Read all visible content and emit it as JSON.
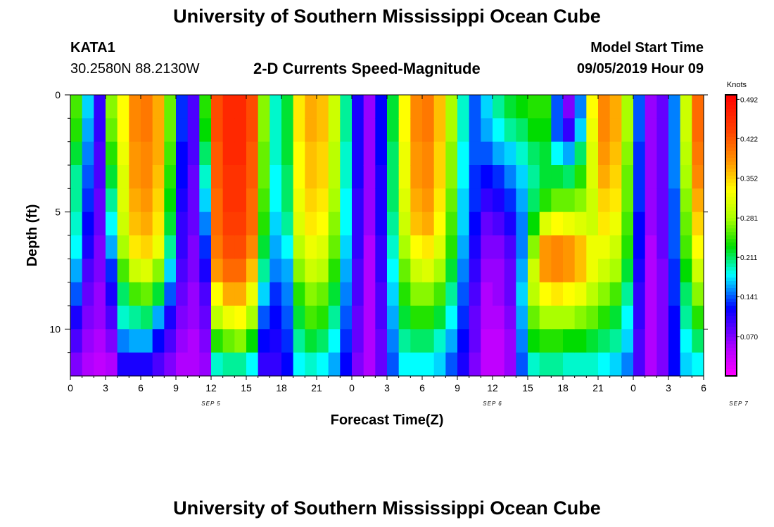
{
  "header": {
    "title": "University of Southern Mississippi Ocean Cube",
    "station_id": "KATA1",
    "station_coords": "30.2580N 88.2130W",
    "product": "2-D Currents Speed-Magnitude",
    "model_start_label": "Model Start Time",
    "model_start_value": "09/05/2019 Hour 09"
  },
  "footer": {
    "title": "University of Southern Mississippi Ocean Cube"
  },
  "chart_data": {
    "type": "heatmap",
    "title": "2-D Currents Speed-Magnitude",
    "xlabel": "Forecast Time(Z)",
    "ylabel": "Depth (ft)",
    "x_ticks": [
      "0",
      "3",
      "6",
      "9",
      "12",
      "15",
      "18",
      "21",
      "0",
      "3",
      "6",
      "9",
      "12",
      "15",
      "18",
      "21",
      "0",
      "3",
      "6"
    ],
    "date_labels": [
      {
        "label": "SEP 5",
        "hour": 12
      },
      {
        "label": "SEP 6",
        "hour": 36
      },
      {
        "label": "SEP 7",
        "hour": 57
      }
    ],
    "x_range_hours": [
      0,
      54
    ],
    "y_ticks": [
      "0",
      "5",
      "10"
    ],
    "y_range_ft": [
      0,
      12
    ],
    "colorbar": {
      "unit": "Knots",
      "ticks": [
        "0.492",
        "0.422",
        "0.352",
        "0.281",
        "0.211",
        "0.141",
        "0.070"
      ],
      "tick_values": [
        0.492,
        0.422,
        0.352,
        0.281,
        0.211,
        0.141,
        0.07
      ],
      "range": [
        0.0,
        0.5
      ]
    },
    "depth_rows": 12,
    "time_columns": 54,
    "column_profiles": [
      [
        0.25,
        0.24,
        0.22,
        0.2,
        0.2,
        0.19,
        0.18,
        0.16,
        0.14,
        0.11,
        0.09,
        0.07
      ],
      [
        0.17,
        0.16,
        0.15,
        0.14,
        0.13,
        0.12,
        0.11,
        0.09,
        0.08,
        0.07,
        0.06,
        0.05
      ],
      [
        0.1,
        0.1,
        0.09,
        0.09,
        0.08,
        0.08,
        0.07,
        0.07,
        0.06,
        0.06,
        0.05,
        0.04
      ],
      [
        0.27,
        0.26,
        0.24,
        0.22,
        0.2,
        0.18,
        0.16,
        0.13,
        0.11,
        0.09,
        0.07,
        0.05
      ],
      [
        0.33,
        0.33,
        0.32,
        0.31,
        0.31,
        0.3,
        0.28,
        0.25,
        0.21,
        0.19,
        0.15,
        0.11
      ],
      [
        0.39,
        0.39,
        0.38,
        0.38,
        0.37,
        0.36,
        0.34,
        0.3,
        0.25,
        0.2,
        0.16,
        0.11
      ],
      [
        0.4,
        0.4,
        0.39,
        0.39,
        0.38,
        0.37,
        0.35,
        0.31,
        0.26,
        0.21,
        0.16,
        0.11
      ],
      [
        0.37,
        0.37,
        0.37,
        0.36,
        0.35,
        0.34,
        0.32,
        0.27,
        0.22,
        0.16,
        0.12,
        0.09
      ],
      [
        0.26,
        0.26,
        0.25,
        0.24,
        0.23,
        0.22,
        0.2,
        0.17,
        0.14,
        0.11,
        0.09,
        0.07
      ],
      [
        0.13,
        0.13,
        0.12,
        0.12,
        0.11,
        0.1,
        0.1,
        0.09,
        0.08,
        0.07,
        0.06,
        0.05
      ],
      [
        0.09,
        0.09,
        0.09,
        0.08,
        0.08,
        0.08,
        0.07,
        0.07,
        0.06,
        0.06,
        0.05,
        0.05
      ],
      [
        0.24,
        0.23,
        0.21,
        0.19,
        0.17,
        0.15,
        0.13,
        0.11,
        0.09,
        0.08,
        0.07,
        0.06
      ],
      [
        0.43,
        0.43,
        0.42,
        0.42,
        0.41,
        0.41,
        0.4,
        0.38,
        0.33,
        0.29,
        0.24,
        0.19
      ],
      [
        0.46,
        0.46,
        0.46,
        0.45,
        0.45,
        0.44,
        0.43,
        0.41,
        0.37,
        0.32,
        0.26,
        0.2
      ],
      [
        0.46,
        0.46,
        0.46,
        0.45,
        0.45,
        0.44,
        0.43,
        0.41,
        0.37,
        0.33,
        0.27,
        0.2
      ],
      [
        0.43,
        0.43,
        0.42,
        0.42,
        0.41,
        0.41,
        0.39,
        0.36,
        0.32,
        0.28,
        0.23,
        0.18
      ],
      [
        0.27,
        0.27,
        0.26,
        0.26,
        0.25,
        0.24,
        0.22,
        0.2,
        0.17,
        0.14,
        0.12,
        0.1
      ],
      [
        0.19,
        0.19,
        0.19,
        0.18,
        0.18,
        0.17,
        0.16,
        0.15,
        0.13,
        0.12,
        0.11,
        0.1
      ],
      [
        0.22,
        0.22,
        0.22,
        0.21,
        0.21,
        0.2,
        0.18,
        0.16,
        0.15,
        0.14,
        0.13,
        0.12
      ],
      [
        0.34,
        0.34,
        0.33,
        0.33,
        0.32,
        0.31,
        0.29,
        0.27,
        0.24,
        0.22,
        0.2,
        0.18
      ],
      [
        0.37,
        0.37,
        0.36,
        0.36,
        0.35,
        0.34,
        0.32,
        0.3,
        0.27,
        0.25,
        0.22,
        0.19
      ],
      [
        0.36,
        0.36,
        0.35,
        0.35,
        0.34,
        0.33,
        0.31,
        0.29,
        0.26,
        0.24,
        0.21,
        0.18
      ],
      [
        0.3,
        0.3,
        0.29,
        0.29,
        0.28,
        0.27,
        0.26,
        0.24,
        0.22,
        0.2,
        0.18,
        0.16
      ],
      [
        0.2,
        0.2,
        0.19,
        0.19,
        0.18,
        0.18,
        0.17,
        0.16,
        0.15,
        0.14,
        0.13,
        0.12
      ],
      [
        0.11,
        0.11,
        0.11,
        0.11,
        0.1,
        0.1,
        0.1,
        0.09,
        0.09,
        0.08,
        0.08,
        0.07
      ],
      [
        0.06,
        0.06,
        0.06,
        0.06,
        0.06,
        0.06,
        0.05,
        0.05,
        0.05,
        0.05,
        0.05,
        0.05
      ],
      [
        0.12,
        0.12,
        0.12,
        0.11,
        0.11,
        0.11,
        0.1,
        0.1,
        0.09,
        0.09,
        0.08,
        0.08
      ],
      [
        0.22,
        0.22,
        0.21,
        0.21,
        0.21,
        0.2,
        0.19,
        0.18,
        0.17,
        0.16,
        0.15,
        0.14
      ],
      [
        0.33,
        0.33,
        0.32,
        0.32,
        0.31,
        0.3,
        0.28,
        0.26,
        0.24,
        0.22,
        0.2,
        0.18
      ],
      [
        0.39,
        0.39,
        0.38,
        0.38,
        0.37,
        0.36,
        0.33,
        0.3,
        0.27,
        0.24,
        0.21,
        0.18
      ],
      [
        0.4,
        0.4,
        0.39,
        0.39,
        0.38,
        0.37,
        0.34,
        0.31,
        0.27,
        0.24,
        0.21,
        0.18
      ],
      [
        0.36,
        0.36,
        0.35,
        0.35,
        0.34,
        0.33,
        0.31,
        0.28,
        0.25,
        0.22,
        0.19,
        0.17
      ],
      [
        0.28,
        0.28,
        0.27,
        0.27,
        0.26,
        0.25,
        0.24,
        0.22,
        0.2,
        0.18,
        0.16,
        0.14
      ],
      [
        0.19,
        0.19,
        0.18,
        0.18,
        0.17,
        0.17,
        0.16,
        0.15,
        0.14,
        0.13,
        0.12,
        0.11
      ],
      [
        0.14,
        0.14,
        0.14,
        0.13,
        0.13,
        0.12,
        0.11,
        0.1,
        0.09,
        0.08,
        0.08,
        0.07
      ],
      [
        0.17,
        0.16,
        0.14,
        0.12,
        0.1,
        0.08,
        0.07,
        0.06,
        0.05,
        0.05,
        0.04,
        0.04
      ],
      [
        0.2,
        0.18,
        0.16,
        0.13,
        0.11,
        0.09,
        0.07,
        0.06,
        0.06,
        0.05,
        0.04,
        0.04
      ],
      [
        0.22,
        0.2,
        0.17,
        0.15,
        0.13,
        0.11,
        0.09,
        0.08,
        0.08,
        0.07,
        0.06,
        0.06
      ],
      [
        0.23,
        0.21,
        0.19,
        0.17,
        0.16,
        0.15,
        0.15,
        0.16,
        0.17,
        0.16,
        0.15,
        0.14
      ],
      [
        0.24,
        0.23,
        0.21,
        0.2,
        0.21,
        0.23,
        0.27,
        0.3,
        0.29,
        0.26,
        0.23,
        0.19
      ],
      [
        0.24,
        0.23,
        0.22,
        0.22,
        0.24,
        0.31,
        0.38,
        0.38,
        0.33,
        0.28,
        0.24,
        0.2
      ],
      [
        0.14,
        0.14,
        0.18,
        0.22,
        0.26,
        0.33,
        0.39,
        0.39,
        0.34,
        0.28,
        0.24,
        0.2
      ],
      [
        0.07,
        0.1,
        0.16,
        0.21,
        0.26,
        0.32,
        0.38,
        0.38,
        0.33,
        0.28,
        0.23,
        0.19
      ],
      [
        0.15,
        0.17,
        0.21,
        0.24,
        0.27,
        0.31,
        0.36,
        0.36,
        0.32,
        0.27,
        0.23,
        0.19
      ],
      [
        0.33,
        0.32,
        0.31,
        0.31,
        0.3,
        0.3,
        0.32,
        0.32,
        0.29,
        0.26,
        0.22,
        0.19
      ],
      [
        0.39,
        0.39,
        0.38,
        0.37,
        0.35,
        0.34,
        0.32,
        0.3,
        0.27,
        0.24,
        0.21,
        0.18
      ],
      [
        0.37,
        0.37,
        0.36,
        0.35,
        0.34,
        0.32,
        0.3,
        0.28,
        0.25,
        0.22,
        0.2,
        0.17
      ],
      [
        0.28,
        0.28,
        0.27,
        0.26,
        0.26,
        0.25,
        0.24,
        0.22,
        0.2,
        0.18,
        0.17,
        0.15
      ],
      [
        0.14,
        0.14,
        0.13,
        0.13,
        0.13,
        0.12,
        0.12,
        0.11,
        0.1,
        0.1,
        0.09,
        0.09
      ],
      [
        0.06,
        0.06,
        0.06,
        0.06,
        0.06,
        0.06,
        0.05,
        0.05,
        0.05,
        0.05,
        0.05,
        0.05
      ],
      [
        0.08,
        0.08,
        0.08,
        0.08,
        0.08,
        0.08,
        0.08,
        0.07,
        0.07,
        0.07,
        0.07,
        0.07
      ],
      [
        0.15,
        0.15,
        0.15,
        0.15,
        0.14,
        0.14,
        0.14,
        0.13,
        0.13,
        0.12,
        0.12,
        0.12
      ],
      [
        0.3,
        0.3,
        0.29,
        0.28,
        0.27,
        0.26,
        0.25,
        0.23,
        0.21,
        0.2,
        0.18,
        0.17
      ],
      [
        0.41,
        0.41,
        0.4,
        0.39,
        0.37,
        0.35,
        0.33,
        0.3,
        0.27,
        0.24,
        0.21,
        0.18
      ]
    ]
  }
}
